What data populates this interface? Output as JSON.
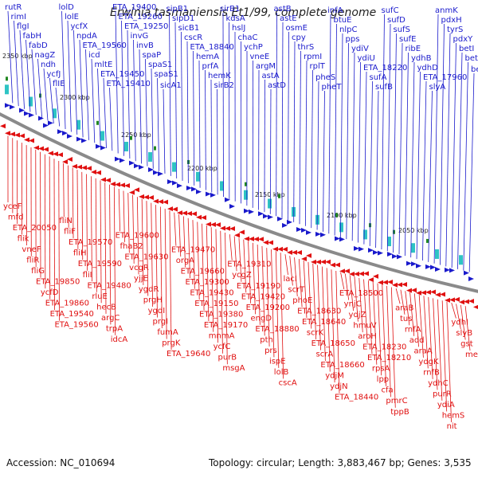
{
  "title": "Erwinia tasmaniensis Et1/99, complete genome",
  "footer": {
    "accession": "Accession: NC_010694",
    "topology": "Topology: circular; Length: 3,883,467 bp; Genes: 3,535"
  },
  "colors": {
    "forward": "#1a1acc",
    "reverse": "#e01010",
    "backbone": "#888888",
    "rna": "#228822"
  },
  "kbp_labels": [
    "2350 kbp",
    "2300 kbp",
    "2250 kbp",
    "2200 kbp",
    "2150 kbp",
    "2100 kbp",
    "2050 kbp"
  ],
  "top_labels": [
    [
      "rutR",
      7
    ],
    [
      "rimI",
      13
    ],
    [
      "flgI",
      19
    ],
    [
      "fabH",
      25
    ],
    [
      "fabD",
      32
    ],
    [
      "nagZ",
      38
    ],
    [
      "ndh",
      44
    ],
    [
      "ycfJ",
      51
    ],
    [
      "flIE",
      57
    ],
    [
      "lolD",
      63
    ],
    [
      "lolE",
      69
    ],
    [
      "ycfX",
      76
    ],
    [
      "npdA",
      82
    ],
    [
      "ETA_19560",
      88
    ],
    [
      "icd",
      94
    ],
    [
      "mltE",
      101
    ],
    [
      "ETA_19450",
      107
    ],
    [
      "ETA_19410",
      113
    ],
    [
      "ETA_19400",
      119
    ],
    [
      "ETA_19260",
      126
    ],
    [
      "ETA_19250",
      132
    ],
    [
      "invG",
      138
    ],
    [
      "invB",
      145
    ],
    [
      "spaP",
      151
    ],
    [
      "spaS1",
      157
    ],
    [
      "spaS1",
      163
    ],
    [
      "sicA1",
      170
    ],
    [
      "sipB1",
      176
    ],
    [
      "sipD1",
      182
    ],
    [
      "sicB1",
      189
    ],
    [
      "cscR",
      195
    ],
    [
      "ETA_18840",
      201
    ],
    [
      "hemA",
      207
    ],
    [
      "prfA",
      214
    ],
    [
      "hemK",
      220
    ],
    [
      "sirB2",
      226
    ],
    [
      "sirB1",
      232
    ],
    [
      "kdsA",
      239
    ],
    [
      "hslJ",
      245
    ],
    [
      "chaC",
      251
    ],
    [
      "ychP",
      258
    ],
    [
      "vneE",
      264
    ],
    [
      "argM",
      270
    ],
    [
      "astA",
      276
    ],
    [
      "astD",
      283
    ],
    [
      "astB",
      289
    ],
    [
      "astE",
      295
    ],
    [
      "osmE",
      302
    ],
    [
      "cpy",
      308
    ],
    [
      "thrS",
      314
    ],
    [
      "rpmI",
      320
    ],
    [
      "rplT",
      327
    ],
    [
      "pheS",
      333
    ],
    [
      "pheT",
      339
    ],
    [
      "infA",
      345
    ],
    [
      "btuE",
      352
    ],
    [
      "nlpC",
      358
    ],
    [
      "pps",
      364
    ],
    [
      "ydiV",
      371
    ],
    [
      "ydiU",
      377
    ],
    [
      "ETA_18220",
      383
    ],
    [
      "sufA",
      389
    ],
    [
      "sufB",
      396
    ],
    [
      "sufC",
      402
    ],
    [
      "sufD",
      408
    ],
    [
      "sufS",
      414
    ],
    [
      "sufE",
      421
    ],
    [
      "ribE",
      427
    ],
    [
      "ydhB",
      433
    ],
    [
      "ydhD",
      440
    ],
    [
      "ETA_17960",
      446
    ],
    [
      "slyA",
      452
    ],
    [
      "anmK",
      458
    ],
    [
      "pdxH",
      465
    ],
    [
      "tyrS",
      471
    ],
    [
      "pdxY",
      477
    ],
    [
      "betI",
      484
    ],
    [
      "betB",
      490
    ],
    [
      "betA",
      496
    ]
  ],
  "bottom_labels": [
    [
      "yceF",
      7
    ],
    [
      "mfd",
      13
    ],
    [
      "ETA_20050",
      19
    ],
    [
      "flik",
      25
    ],
    [
      "vneF",
      32
    ],
    [
      "fliR",
      38
    ],
    [
      "fliG",
      44
    ],
    [
      "ETA_19850",
      51
    ],
    [
      "ycfD",
      57
    ],
    [
      "ETA_19860",
      63
    ],
    [
      "ETA_19540",
      69
    ],
    [
      "ETA_19560",
      76
    ],
    [
      "fliN",
      82
    ],
    [
      "fliF",
      88
    ],
    [
      "ETA_19570",
      94
    ],
    [
      "fliH",
      101
    ],
    [
      "ETA_19590",
      107
    ],
    [
      "fliI",
      113
    ],
    [
      "ETA_19480",
      119
    ],
    [
      "rluE",
      126
    ],
    [
      "hecB",
      132
    ],
    [
      "argC",
      138
    ],
    [
      "trpA",
      145
    ],
    [
      "idcA",
      151
    ],
    [
      "ETA_19600",
      157
    ],
    [
      "fhaB2",
      163
    ],
    [
      "ETA_19630",
      170
    ],
    [
      "vcgR",
      176
    ],
    [
      "yjjE",
      182
    ],
    [
      "ygdR",
      189
    ],
    [
      "prgH",
      195
    ],
    [
      "ygdI",
      201
    ],
    [
      "prgI",
      207
    ],
    [
      "fumA",
      214
    ],
    [
      "prgK",
      220
    ],
    [
      "ETA_19640",
      226
    ],
    [
      "ETA_19470",
      232
    ],
    [
      "orgA",
      239
    ],
    [
      "ETA_19660",
      245
    ],
    [
      "ETA_19300",
      251
    ],
    [
      "ETA_19430",
      258
    ],
    [
      "ETA_19150",
      264
    ],
    [
      "ETA_19380",
      270
    ],
    [
      "ETA_19170",
      276
    ],
    [
      "mnmA",
      283
    ],
    [
      "ycfC",
      289
    ],
    [
      "purB",
      295
    ],
    [
      "msgA",
      302
    ],
    [
      "ETA_19310",
      308
    ],
    [
      "ycgZ",
      314
    ],
    [
      "ETA_19190",
      320
    ],
    [
      "ETA_19420",
      327
    ],
    [
      "ETA_19200",
      333
    ],
    [
      "engD",
      339
    ],
    [
      "ETA_18880",
      345
    ],
    [
      "pth",
      352
    ],
    [
      "prs",
      358
    ],
    [
      "ispE",
      364
    ],
    [
      "lolB",
      371
    ],
    [
      "cscA",
      377
    ],
    [
      "lacI",
      383
    ],
    [
      "scrT",
      389
    ],
    [
      "phoE",
      396
    ],
    [
      "ETA_18630",
      402
    ],
    [
      "ETA_18640",
      408
    ],
    [
      "scrK",
      414
    ],
    [
      "ETA_18650",
      421
    ],
    [
      "scrA",
      427
    ],
    [
      "ETA_18660",
      433
    ],
    [
      "ydjM",
      440
    ],
    [
      "ydjN",
      446
    ],
    [
      "ETA_18440",
      452
    ],
    [
      "ETA_18500",
      458
    ],
    [
      "ynjC",
      465
    ],
    [
      "ydjZ",
      471
    ],
    [
      "hmuV",
      477
    ],
    [
      "aroH",
      484
    ],
    [
      "ETA_18230",
      490
    ],
    [
      "ETA_18210",
      496
    ],
    [
      "rpsA",
      502
    ],
    [
      "lpp",
      509
    ],
    [
      "cfa",
      515
    ],
    [
      "pmrC",
      521
    ],
    [
      "tppB",
      527
    ],
    [
      "araB",
      534
    ],
    [
      "tus",
      540
    ],
    [
      "rnfA",
      546
    ],
    [
      "add",
      552
    ],
    [
      "araA",
      558
    ],
    [
      "ydgK",
      565
    ],
    [
      "rnfB",
      571
    ],
    [
      "ydhC",
      577
    ],
    [
      "purR",
      583
    ],
    [
      "ydiA",
      589
    ],
    [
      "hemS",
      596
    ],
    [
      "nit",
      602
    ],
    [
      "ydhI",
      608
    ],
    [
      "slyB",
      614
    ],
    [
      "gst",
      621
    ],
    [
      "menA",
      627
    ]
  ]
}
